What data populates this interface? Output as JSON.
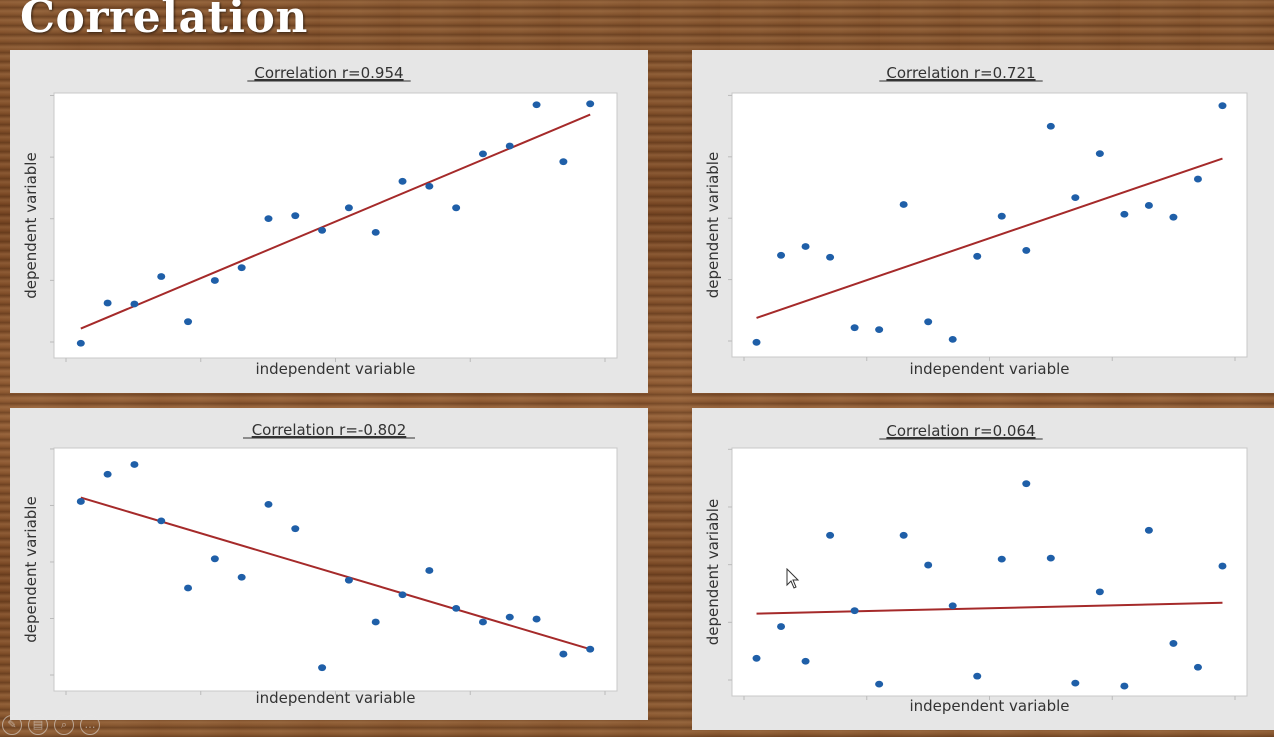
{
  "slide": {
    "title": "Correlation"
  },
  "controls": [
    {
      "name": "edit-icon",
      "glyph": "✎"
    },
    {
      "name": "slides-icon",
      "glyph": "▤"
    },
    {
      "name": "zoom-icon",
      "glyph": "⌕"
    },
    {
      "name": "more-icon",
      "glyph": "…"
    }
  ],
  "chart_data": [
    {
      "type": "scatter",
      "title": "Correlation r=0.954",
      "xlabel": "independent variable",
      "ylabel": "dependent variable",
      "xlim": [
        0,
        21
      ],
      "ylim": [
        0,
        27
      ],
      "points_x": [
        1,
        2,
        3,
        4,
        5,
        6,
        7,
        8,
        9,
        10,
        11,
        12,
        13,
        14,
        15,
        16,
        17,
        18,
        19,
        20
      ],
      "points_y": [
        1.5,
        5.6,
        5.5,
        8.3,
        3.7,
        7.9,
        9.2,
        14.2,
        14.5,
        13.0,
        15.3,
        12.8,
        18.0,
        17.5,
        15.3,
        20.8,
        21.6,
        25.8,
        20.0,
        25.9
      ],
      "trendline": [
        [
          1,
          3.0
        ],
        [
          20,
          24.8
        ]
      ],
      "grid": false,
      "marker_color": "#1f5fa8",
      "line_color": "#a52a2a"
    },
    {
      "type": "scatter",
      "title": "Correlation r=0.721",
      "xlabel": "independent variable",
      "ylabel": "dependent variable",
      "xlim": [
        0,
        21
      ],
      "ylim": [
        0,
        27
      ],
      "points_x": [
        1,
        2,
        3,
        4,
        5,
        6,
        7,
        8,
        9,
        10,
        11,
        12,
        13,
        14,
        15,
        16,
        17,
        18,
        19,
        20
      ],
      "points_y": [
        1.5,
        10.4,
        11.3,
        10.2,
        3.0,
        2.8,
        15.6,
        3.6,
        1.8,
        10.3,
        14.4,
        10.9,
        23.6,
        16.3,
        20.8,
        14.6,
        15.5,
        14.3,
        18.2,
        25.7
      ],
      "trendline": [
        [
          1,
          4.0
        ],
        [
          20,
          20.3
        ]
      ],
      "grid": false,
      "marker_color": "#1f5fa8",
      "line_color": "#a52a2a"
    },
    {
      "type": "scatter",
      "title": "Correlation r=-0.802",
      "xlabel": "independent variable",
      "ylabel": "dependent variable",
      "xlim": [
        0,
        21
      ],
      "ylim": [
        0,
        25
      ],
      "points_x": [
        1,
        2,
        3,
        4,
        5,
        6,
        7,
        8,
        9,
        10,
        11,
        12,
        13,
        14,
        15,
        16,
        17,
        18,
        19,
        20
      ],
      "points_y": [
        19.5,
        22.3,
        23.3,
        17.5,
        10.6,
        13.6,
        11.7,
        19.2,
        16.7,
        2.4,
        11.4,
        7.1,
        9.9,
        12.4,
        8.5,
        7.1,
        7.6,
        7.4,
        3.8,
        4.3
      ],
      "trendline": [
        [
          1,
          19.9
        ],
        [
          20,
          4.3
        ]
      ],
      "grid": false,
      "marker_color": "#1f5fa8",
      "line_color": "#a52a2a"
    },
    {
      "type": "scatter",
      "title": "Correlation r=0.064",
      "xlabel": "independent variable",
      "ylabel": "dependent variable",
      "xlim": [
        0,
        21
      ],
      "ylim": [
        0,
        25
      ],
      "points_x": [
        1,
        2,
        3,
        4,
        5,
        6,
        7,
        8,
        9,
        10,
        11,
        12,
        13,
        14,
        15,
        16,
        17,
        18,
        19,
        20
      ],
      "points_y": [
        3.8,
        7.0,
        3.5,
        16.2,
        8.6,
        1.2,
        16.2,
        13.2,
        9.1,
        2.0,
        13.8,
        21.4,
        13.9,
        1.3,
        10.5,
        1.0,
        16.7,
        5.3,
        2.9,
        13.1
      ],
      "trendline": [
        [
          1,
          8.3
        ],
        [
          20,
          9.4
        ]
      ],
      "grid": false,
      "marker_color": "#1f5fa8",
      "line_color": "#a52a2a"
    }
  ]
}
